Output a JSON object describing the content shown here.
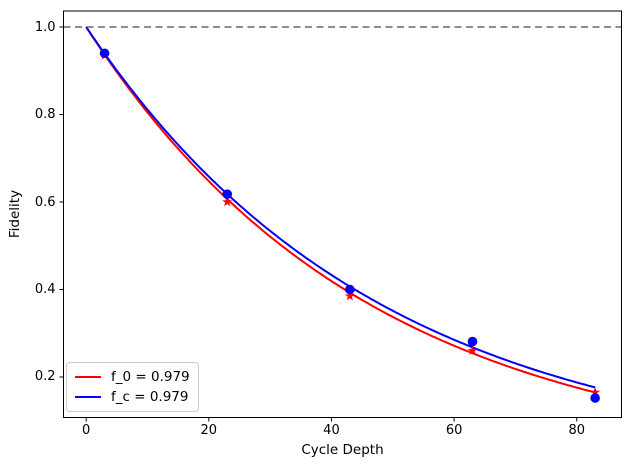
{
  "chart_data": {
    "type": "line",
    "title": "",
    "xlabel": "Cycle Depth",
    "ylabel": "Fidelity",
    "xlim": [
      -3.7,
      87.3
    ],
    "ylim": [
      0.1074,
      1.0366
    ],
    "xticks": [
      0,
      20,
      40,
      60,
      80
    ],
    "xtick_labels": [
      "0",
      "20",
      "40",
      "60",
      "80"
    ],
    "yticks": [
      0.2,
      0.4,
      0.6,
      0.8,
      1.0
    ],
    "ytick_labels": [
      "0.2",
      "0.4",
      "0.6",
      "0.8",
      "1.0"
    ],
    "grid": false,
    "reference_line": {
      "y": 1.0,
      "style": "dashed",
      "color": "#7f7f7f"
    },
    "fit_curves": [
      {
        "name": "f_0",
        "label": "f_0 = 0.979",
        "color": "#ff0000",
        "model": "y = f^x",
        "layer_fidelity": 0.9785,
        "x_start": 0,
        "x_end": 83
      },
      {
        "name": "f_c",
        "label": "f_c = 0.979",
        "color": "#0000ff",
        "model": "y = f^x",
        "layer_fidelity": 0.9793,
        "x_start": 0,
        "x_end": 83
      }
    ],
    "scatter": [
      {
        "name": "f_0-points",
        "marker": "star",
        "color": "#ff0000",
        "x": [
          3,
          23,
          43,
          63,
          83
        ],
        "y": [
          0.935,
          0.6,
          0.385,
          0.26,
          0.165
        ]
      },
      {
        "name": "f_c-points",
        "marker": "circle",
        "color": "#0000ff",
        "x": [
          3,
          23,
          43,
          63,
          83
        ],
        "y": [
          0.94,
          0.618,
          0.4,
          0.281,
          0.152
        ]
      }
    ],
    "legend": {
      "position": "lower-left",
      "entries": [
        {
          "label": "f_0 = 0.979",
          "color": "#ff0000"
        },
        {
          "label": "f_c = 0.979",
          "color": "#0000ff"
        }
      ]
    }
  }
}
